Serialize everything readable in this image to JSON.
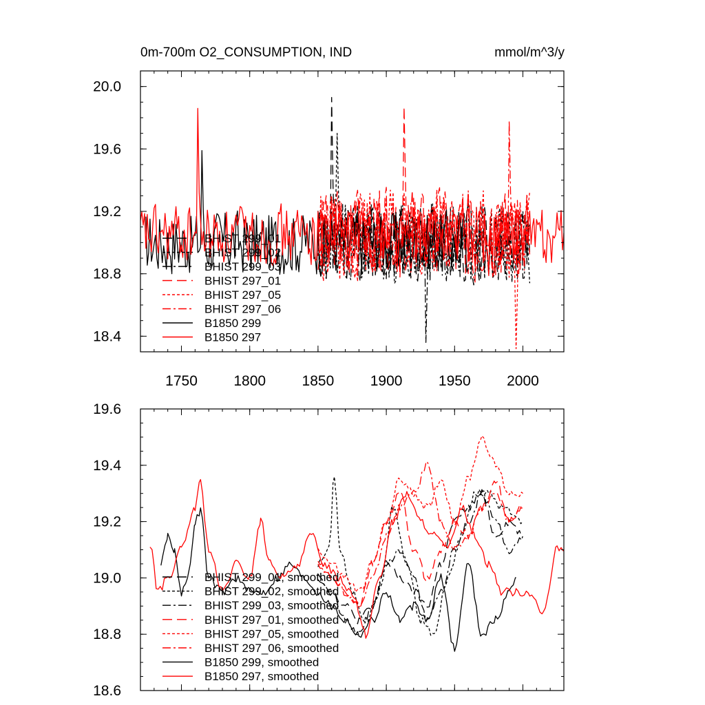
{
  "chart_data": [
    {
      "type": "line",
      "title": "0m-700m O2_CONSUMPTION, IND",
      "units": "mmol/m^3/y",
      "xlabel": "",
      "ylabel": "",
      "xlim": [
        1720,
        2030
      ],
      "ylim": [
        18.3,
        20.1
      ],
      "xticks": [
        1750,
        1800,
        1850,
        1900,
        1950,
        2000
      ],
      "yticks": [
        18.4,
        18.8,
        19.2,
        19.6,
        20.0
      ],
      "ytick_labels": [
        "18.4",
        "18.8",
        "19.2",
        "19.6",
        "20.0"
      ],
      "xtick_labels": [
        "1750",
        "1800",
        "1850",
        "1900",
        "1950",
        "2000"
      ],
      "legend_position": "bottom-left",
      "series": [
        {
          "name": "BHIST 299_01",
          "color": "#000000",
          "dash": "long-dash",
          "start": 1850,
          "end": 2005,
          "mean": 19.0,
          "amp": 0.28,
          "seed": 11,
          "spike": [
            1860,
            19.93
          ]
        },
        {
          "name": "BHIST 299_02",
          "color": "#000000",
          "dash": "short-dash",
          "start": 1850,
          "end": 2005,
          "mean": 19.0,
          "amp": 0.28,
          "seed": 12,
          "spike": [
            1864,
            19.7
          ]
        },
        {
          "name": "BHIST 299_03",
          "color": "#000000",
          "dash": "dash-dot",
          "start": 1850,
          "end": 2005,
          "mean": 19.0,
          "amp": 0.28,
          "seed": 13,
          "spike": [
            1929,
            18.36
          ]
        },
        {
          "name": "BHIST 297_01",
          "color": "#ff0000",
          "dash": "long-dash",
          "start": 1850,
          "end": 2005,
          "mean": 19.05,
          "amp": 0.3,
          "seed": 14,
          "spike": [
            1913,
            19.87
          ]
        },
        {
          "name": "BHIST 297_05",
          "color": "#ff0000",
          "dash": "short-dash",
          "start": 1850,
          "end": 2005,
          "mean": 19.05,
          "amp": 0.3,
          "seed": 15,
          "spike": [
            1995,
            18.32
          ]
        },
        {
          "name": "BHIST 297_06",
          "color": "#ff0000",
          "dash": "dash-dot",
          "start": 1850,
          "end": 2005,
          "mean": 19.05,
          "amp": 0.3,
          "seed": 16,
          "spike": [
            1990,
            19.78
          ]
        },
        {
          "name": "B1850 299",
          "color": "#000000",
          "dash": "solid",
          "start": 1724,
          "end": 1960,
          "mean": 19.0,
          "amp": 0.22,
          "seed": 17,
          "spike": [
            1765,
            19.59
          ]
        },
        {
          "name": "B1850 297",
          "color": "#ff0000",
          "dash": "solid",
          "start": 1720,
          "end": 2030,
          "mean": 19.05,
          "amp": 0.2,
          "seed": 18,
          "spike": [
            1762,
            19.86
          ]
        }
      ]
    },
    {
      "type": "line",
      "title": "",
      "xlabel": "",
      "ylabel": "",
      "xlim": [
        1720,
        2030
      ],
      "ylim": [
        18.6,
        19.6
      ],
      "xticks": [
        1750,
        1800,
        1850,
        1900,
        1950,
        2000
      ],
      "yticks": [
        18.6,
        18.8,
        19.0,
        19.2,
        19.4,
        19.6
      ],
      "ytick_labels": [
        "18.6",
        "18.8",
        "19.0",
        "19.2",
        "19.4",
        "19.6"
      ],
      "legend_position": "bottom-left",
      "series": [
        {
          "name": "BHIST 299_01, smoothed",
          "color": "#000000",
          "dash": "long-dash",
          "knots": [
            [
              1850,
              19.0
            ],
            [
              1860,
              18.95
            ],
            [
              1870,
              18.9
            ],
            [
              1880,
              18.85
            ],
            [
              1890,
              18.9
            ],
            [
              1900,
              19.05
            ],
            [
              1910,
              19.0
            ],
            [
              1920,
              18.95
            ],
            [
              1930,
              18.9
            ],
            [
              1940,
              19.05
            ],
            [
              1950,
              19.2
            ],
            [
              1960,
              19.25
            ],
            [
              1970,
              19.3
            ],
            [
              1980,
              19.15
            ],
            [
              1990,
              19.2
            ],
            [
              2000,
              19.15
            ]
          ]
        },
        {
          "name": "BHIST 299_02, smoothed",
          "color": "#000000",
          "dash": "short-dash",
          "knots": [
            [
              1850,
              19.05
            ],
            [
              1858,
              19.1
            ],
            [
              1862,
              19.37
            ],
            [
              1866,
              19.1
            ],
            [
              1875,
              18.95
            ],
            [
              1885,
              18.85
            ],
            [
              1895,
              18.95
            ],
            [
              1905,
              19.25
            ],
            [
              1915,
              19.05
            ],
            [
              1925,
              18.85
            ],
            [
              1935,
              18.8
            ],
            [
              1945,
              19.0
            ],
            [
              1955,
              19.15
            ],
            [
              1965,
              19.3
            ],
            [
              1975,
              19.3
            ],
            [
              1985,
              19.25
            ],
            [
              2000,
              19.2
            ]
          ]
        },
        {
          "name": "BHIST 299_03, smoothed",
          "color": "#000000",
          "dash": "dash-dot",
          "knots": [
            [
              1850,
              19.0
            ],
            [
              1860,
              18.95
            ],
            [
              1870,
              18.85
            ],
            [
              1880,
              18.8
            ],
            [
              1890,
              18.9
            ],
            [
              1900,
              19.05
            ],
            [
              1910,
              19.1
            ],
            [
              1920,
              19.0
            ],
            [
              1930,
              18.85
            ],
            [
              1940,
              18.95
            ],
            [
              1950,
              19.1
            ],
            [
              1960,
              19.2
            ],
            [
              1970,
              19.3
            ],
            [
              1980,
              19.2
            ],
            [
              1990,
              19.1
            ],
            [
              2000,
              19.15
            ]
          ]
        },
        {
          "name": "BHIST 297_01, smoothed",
          "color": "#ff0000",
          "dash": "long-dash",
          "knots": [
            [
              1850,
              19.05
            ],
            [
              1860,
              19.0
            ],
            [
              1870,
              18.95
            ],
            [
              1880,
              18.9
            ],
            [
              1890,
              19.05
            ],
            [
              1900,
              19.2
            ],
            [
              1910,
              19.3
            ],
            [
              1920,
              19.1
            ],
            [
              1930,
              19.0
            ],
            [
              1940,
              19.1
            ],
            [
              1950,
              19.2
            ],
            [
              1960,
              19.15
            ],
            [
              1970,
              19.25
            ],
            [
              1980,
              19.35
            ],
            [
              1990,
              19.2
            ],
            [
              2000,
              19.25
            ]
          ]
        },
        {
          "name": "BHIST 297_05, smoothed",
          "color": "#ff0000",
          "dash": "short-dash",
          "knots": [
            [
              1850,
              19.1
            ],
            [
              1860,
              19.05
            ],
            [
              1870,
              19.0
            ],
            [
              1880,
              18.95
            ],
            [
              1890,
              19.05
            ],
            [
              1900,
              19.2
            ],
            [
              1910,
              19.35
            ],
            [
              1920,
              19.3
            ],
            [
              1930,
              19.25
            ],
            [
              1940,
              19.35
            ],
            [
              1950,
              19.2
            ],
            [
              1960,
              19.35
            ],
            [
              1970,
              19.5
            ],
            [
              1980,
              19.4
            ],
            [
              1990,
              19.3
            ],
            [
              2000,
              19.3
            ]
          ]
        },
        {
          "name": "BHIST 297_06, smoothed",
          "color": "#ff0000",
          "dash": "dash-dot",
          "knots": [
            [
              1850,
              19.05
            ],
            [
              1860,
              19.0
            ],
            [
              1870,
              18.95
            ],
            [
              1880,
              18.9
            ],
            [
              1890,
              19.0
            ],
            [
              1900,
              19.15
            ],
            [
              1910,
              19.25
            ],
            [
              1920,
              19.3
            ],
            [
              1930,
              19.4
            ],
            [
              1940,
              19.2
            ],
            [
              1950,
              19.1
            ],
            [
              1960,
              19.15
            ],
            [
              1970,
              19.25
            ],
            [
              1980,
              19.3
            ],
            [
              1990,
              19.2
            ],
            [
              2000,
              19.25
            ]
          ]
        },
        {
          "name": "B1850 299, smoothed",
          "color": "#000000",
          "dash": "solid",
          "knots": [
            [
              1735,
              19.05
            ],
            [
              1740,
              19.15
            ],
            [
              1745,
              19.1
            ],
            [
              1750,
              18.95
            ],
            [
              1755,
              19.0
            ],
            [
              1760,
              19.2
            ],
            [
              1764,
              19.24
            ],
            [
              1770,
              19.0
            ],
            [
              1780,
              18.95
            ],
            [
              1790,
              19.0
            ],
            [
              1800,
              18.95
            ],
            [
              1810,
              18.95
            ],
            [
              1820,
              19.0
            ],
            [
              1830,
              19.05
            ],
            [
              1840,
              19.0
            ],
            [
              1850,
              18.95
            ],
            [
              1860,
              18.9
            ],
            [
              1870,
              18.85
            ],
            [
              1880,
              18.8
            ],
            [
              1890,
              18.85
            ],
            [
              1900,
              18.95
            ],
            [
              1910,
              18.85
            ],
            [
              1920,
              18.9
            ],
            [
              1930,
              18.85
            ],
            [
              1940,
              19.0
            ],
            [
              1950,
              18.75
            ],
            [
              1960,
              19.05
            ],
            [
              1970,
              18.8
            ],
            [
              1980,
              18.85
            ],
            [
              1990,
              18.95
            ],
            [
              1995,
              19.0
            ]
          ]
        },
        {
          "name": "B1850 297, smoothed",
          "color": "#ff0000",
          "dash": "solid",
          "knots": [
            [
              1727,
              19.12
            ],
            [
              1733,
              18.95
            ],
            [
              1740,
              19.0
            ],
            [
              1750,
              19.1
            ],
            [
              1760,
              19.25
            ],
            [
              1764,
              19.34
            ],
            [
              1770,
              19.1
            ],
            [
              1780,
              18.95
            ],
            [
              1790,
              19.05
            ],
            [
              1800,
              19.0
            ],
            [
              1808,
              19.2
            ],
            [
              1815,
              19.05
            ],
            [
              1825,
              19.0
            ],
            [
              1835,
              19.05
            ],
            [
              1845,
              19.15
            ],
            [
              1855,
              19.05
            ],
            [
              1865,
              19.0
            ],
            [
              1875,
              18.95
            ],
            [
              1885,
              18.8
            ],
            [
              1895,
              19.0
            ],
            [
              1905,
              19.2
            ],
            [
              1915,
              19.3
            ],
            [
              1925,
              19.2
            ],
            [
              1935,
              19.15
            ],
            [
              1945,
              19.1
            ],
            [
              1955,
              19.25
            ],
            [
              1965,
              19.15
            ],
            [
              1975,
              19.05
            ],
            [
              1985,
              18.95
            ],
            [
              1995,
              18.95
            ],
            [
              2005,
              18.95
            ],
            [
              2015,
              18.87
            ],
            [
              2025,
              19.1
            ],
            [
              2030,
              19.1
            ]
          ]
        }
      ]
    }
  ]
}
